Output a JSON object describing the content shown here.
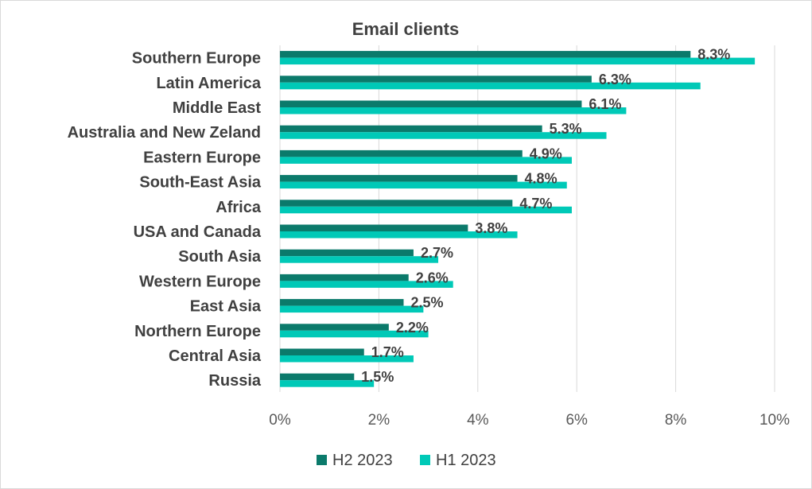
{
  "chart_data": {
    "type": "bar",
    "orientation": "horizontal",
    "title": "Email clients",
    "xlim": [
      0,
      10
    ],
    "x_ticks": [
      "0%",
      "2%",
      "4%",
      "6%",
      "8%",
      "10%"
    ],
    "x_tick_values": [
      0,
      2,
      4,
      6,
      8,
      10
    ],
    "grid": true,
    "legend_position": "bottom",
    "categories": [
      "Southern Europe",
      "Latin America",
      "Middle East",
      "Australia and New Zeland",
      "Eastern Europe",
      "South-East Asia",
      "Africa",
      "USA and Canada",
      "South Asia",
      "Western Europe",
      "East Asia",
      "Northern Europe",
      "Central Asia",
      "Russia"
    ],
    "series": [
      {
        "name": "H2 2023",
        "color": "#0b7a6b",
        "values": [
          8.3,
          6.3,
          6.1,
          5.3,
          4.9,
          4.8,
          4.7,
          3.8,
          2.7,
          2.6,
          2.5,
          2.2,
          1.7,
          1.5
        ],
        "labels": [
          "8.3%",
          "6.3%",
          "6.1%",
          "5.3%",
          "4.9%",
          "4.8%",
          "4.7%",
          "3.8%",
          "2.7%",
          "2.6%",
          "2.5%",
          "2.2%",
          "1.7%",
          "1.5%"
        ]
      },
      {
        "name": "H1 2023",
        "color": "#00c9b7",
        "values": [
          9.6,
          8.5,
          7.0,
          6.6,
          5.9,
          5.8,
          5.9,
          4.8,
          3.2,
          3.5,
          2.9,
          3.0,
          2.7,
          1.9
        ]
      }
    ]
  }
}
